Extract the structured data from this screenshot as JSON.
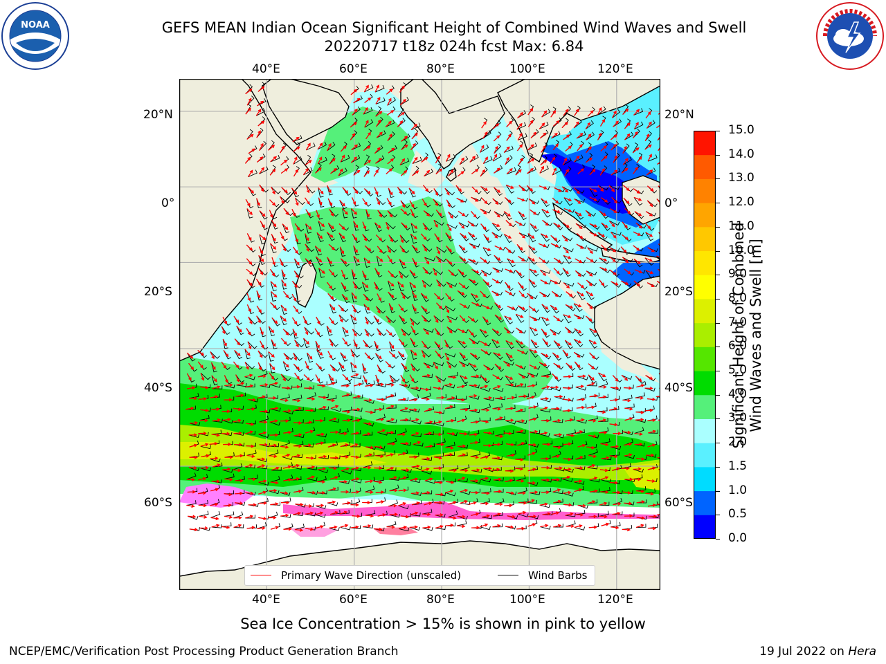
{
  "title_line1": "GEFS MEAN Indian Ocean Significant Height of Combined Wind Waves and Swell",
  "title_line2": "20220717 t18z 024h fcst   Max: 6.84",
  "logos": {
    "left": "noaa-logo",
    "right": "nws-logo"
  },
  "map": {
    "lon_ticks": [
      "40°E",
      "60°E",
      "80°E",
      "100°E",
      "120°E"
    ],
    "lat_ticks_left": [
      "20°N",
      "0°",
      "20°S",
      "40°S",
      "60°S"
    ],
    "lat_ticks_right": [
      "20°N",
      "0°",
      "20°S",
      "40°S",
      "60°S"
    ],
    "lon_range": [
      20,
      130
    ],
    "lat_range": [
      -73,
      28
    ],
    "land_color": "#efeedd",
    "gridlines": true
  },
  "colorbar": {
    "title": "Significant Height of Combined Wind Waves and Swell [m]",
    "levels": [
      "0.0",
      "0.5",
      "1.0",
      "1.5",
      "2.0",
      "3.0",
      "4.0",
      "5.0",
      "6.0",
      "7.0",
      "8.0",
      "9.0",
      "10.0",
      "11.0",
      "12.0",
      "13.0",
      "14.0",
      "15.0"
    ],
    "colors": [
      "#0000ff",
      "#0064ff",
      "#00dcff",
      "#5af0ff",
      "#aaffff",
      "#55f07a",
      "#00dc00",
      "#55e600",
      "#aaee00",
      "#dcf000",
      "#ffff00",
      "#ffe600",
      "#ffc800",
      "#ffa500",
      "#ff8200",
      "#ff5a00",
      "#ff1400"
    ]
  },
  "legend": {
    "wave_label": "Primary Wave Direction (unscaled)",
    "wave_color": "#ff0000",
    "barb_label": "Wind Barbs",
    "barb_color": "#000000"
  },
  "caption": "Sea Ice Concentration > 15% is shown in pink to yellow",
  "footer": {
    "left": "NCEP/EMC/Verification Post Processing Product Generation Branch",
    "date": "19 Jul 2022 on",
    "machine": "Hera"
  }
}
